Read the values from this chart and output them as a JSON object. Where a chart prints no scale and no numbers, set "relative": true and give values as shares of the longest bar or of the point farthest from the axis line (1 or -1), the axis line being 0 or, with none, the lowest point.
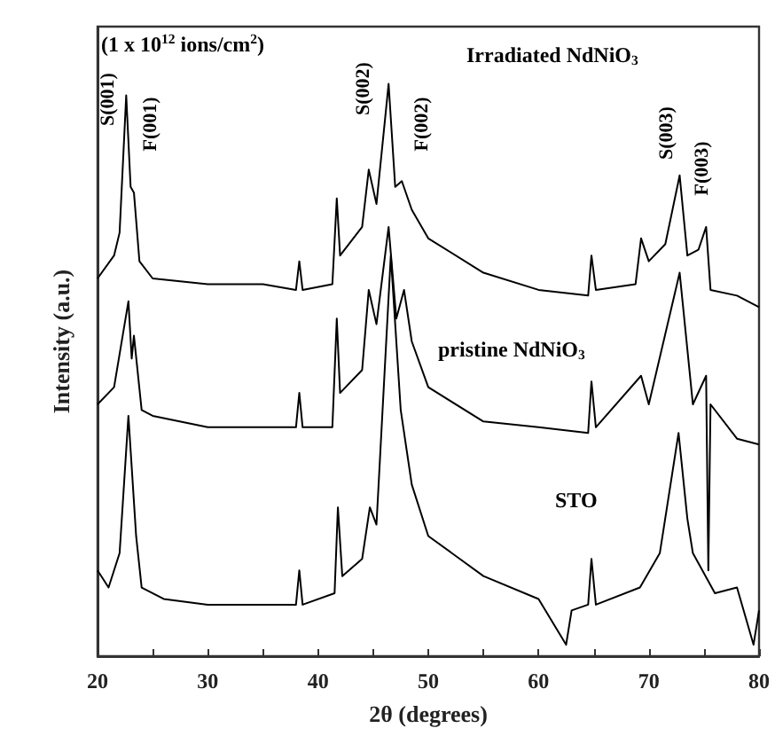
{
  "chart_data": {
    "type": "line",
    "relative": true,
    "xlabel": "2θ (degrees)",
    "ylabel": "Intensity (a.u.)",
    "xlim": [
      20,
      80
    ],
    "xticks": [
      20,
      30,
      40,
      50,
      60,
      70,
      80
    ],
    "grid": false,
    "marker": "none",
    "line_style": "solid",
    "tick_labels": "x",
    "annotations": [
      "(1 x 10$^{12}$ ions/cm$^{2}$)",
      "Irradiated NdNiO$_{3}$",
      "pristine NdNiO$_{3}$",
      "STO",
      "S(001)",
      "F(001)",
      "S(002)",
      "F(002)",
      "S(003)",
      "F(003)"
    ],
    "series": [
      {
        "color": "#000000",
        "x": [
          20,
          21.5,
          22,
          22.6,
          23.0,
          23.3,
          23.8,
          25,
          30,
          35,
          38,
          38.3,
          38.6,
          41.3,
          41.7,
          42,
          44,
          44.6,
          45.3,
          46.4,
          47.0,
          47.6,
          48.5,
          50,
          55,
          60,
          64.5,
          64.8,
          65.2,
          68.8,
          69.3,
          70,
          71.5,
          72.8,
          73.5,
          74.5,
          75.2,
          75.6,
          78,
          80
        ],
        "values": [
          0.66,
          0.7,
          0.74,
          0.98,
          0.82,
          0.81,
          0.69,
          0.66,
          0.65,
          0.65,
          0.64,
          0.69,
          0.64,
          0.65,
          0.8,
          0.7,
          0.75,
          0.85,
          0.79,
          1.0,
          0.82,
          0.83,
          0.78,
          0.73,
          0.67,
          0.64,
          0.63,
          0.7,
          0.64,
          0.65,
          0.73,
          0.69,
          0.72,
          0.84,
          0.7,
          0.71,
          0.75,
          0.64,
          0.63,
          0.61
        ]
      },
      {
        "color": "#000000",
        "x": [
          20,
          21.5,
          22.8,
          23.1,
          23.3,
          24,
          25,
          30,
          38,
          38.3,
          38.6,
          41.3,
          41.7,
          42,
          44,
          44.6,
          45.3,
          46.4,
          47.1,
          47.8,
          48.5,
          50,
          55,
          60,
          64.5,
          64.8,
          65.2,
          69.3,
          70,
          72.8,
          74,
          75.2,
          75.4,
          75.6,
          78,
          80
        ],
        "values": [
          0.44,
          0.47,
          0.62,
          0.52,
          0.56,
          0.43,
          0.42,
          0.4,
          0.4,
          0.46,
          0.4,
          0.4,
          0.59,
          0.46,
          0.5,
          0.64,
          0.58,
          0.75,
          0.59,
          0.64,
          0.55,
          0.47,
          0.41,
          0.4,
          0.39,
          0.48,
          0.4,
          0.49,
          0.44,
          0.67,
          0.44,
          0.49,
          0.15,
          0.44,
          0.38,
          0.37
        ]
      },
      {
        "color": "#000000",
        "x": [
          20,
          21,
          22,
          22.8,
          23.5,
          24,
          26,
          30,
          35,
          38,
          38.3,
          38.6,
          41.5,
          41.8,
          42.2,
          44,
          44.7,
          45.3,
          46.6,
          47.5,
          48.5,
          50,
          55,
          60,
          62.5,
          63,
          64.5,
          64.8,
          65.2,
          69.2,
          71,
          72.7,
          73.5,
          74,
          76,
          78,
          79.5,
          80
        ],
        "values": [
          0.15,
          0.12,
          0.18,
          0.42,
          0.21,
          0.12,
          0.1,
          0.09,
          0.09,
          0.09,
          0.15,
          0.09,
          0.11,
          0.26,
          0.14,
          0.17,
          0.26,
          0.23,
          0.7,
          0.43,
          0.3,
          0.21,
          0.14,
          0.1,
          0.02,
          0.08,
          0.09,
          0.17,
          0.09,
          0.12,
          0.18,
          0.39,
          0.24,
          0.18,
          0.11,
          0.12,
          0.02,
          0.08
        ]
      }
    ]
  }
}
